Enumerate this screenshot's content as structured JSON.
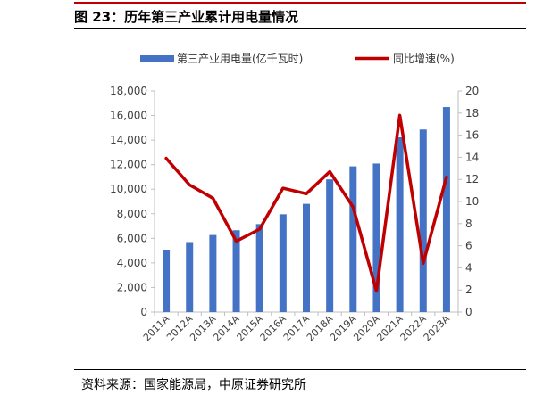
{
  "figure": {
    "title": "图 23：历年第三产业累计用电量情况",
    "source": "资料来源：国家能源局，中原证券研究所"
  },
  "colors": {
    "bar": "#4472c4",
    "line": "#c00000",
    "axis": "#bfbfbf",
    "text": "#404040"
  },
  "chart_data": {
    "type": "bar",
    "categories": [
      "2011A",
      "2012A",
      "2013A",
      "2014A",
      "2015A",
      "2016A",
      "2017A",
      "2018A",
      "2019A",
      "2020A",
      "2021A",
      "2022A",
      "2023A"
    ],
    "series": [
      {
        "name": "第三产业用电量(亿千瓦时)",
        "type": "bar",
        "axis": "left",
        "values": [
          5080,
          5700,
          6270,
          6660,
          7160,
          7960,
          8810,
          10800,
          11860,
          12090,
          14230,
          14860,
          16690
        ]
      },
      {
        "name": "同比增速(%)",
        "type": "line",
        "axis": "right",
        "values": [
          13.9,
          11.5,
          10.3,
          6.4,
          7.5,
          11.2,
          10.7,
          12.7,
          9.5,
          1.9,
          17.8,
          4.4,
          12.2
        ]
      }
    ],
    "ylim_left": [
      0,
      18000
    ],
    "yticks_left": [
      "0",
      "2,000",
      "4,000",
      "6,000",
      "8,000",
      "10,000",
      "12,000",
      "14,000",
      "16,000",
      "18,000"
    ],
    "ylim_right": [
      0,
      20
    ],
    "yticks_right": [
      "0",
      "2",
      "4",
      "6",
      "8",
      "10",
      "12",
      "14",
      "16",
      "18",
      "20"
    ],
    "grid": false,
    "legend_position": "top"
  }
}
